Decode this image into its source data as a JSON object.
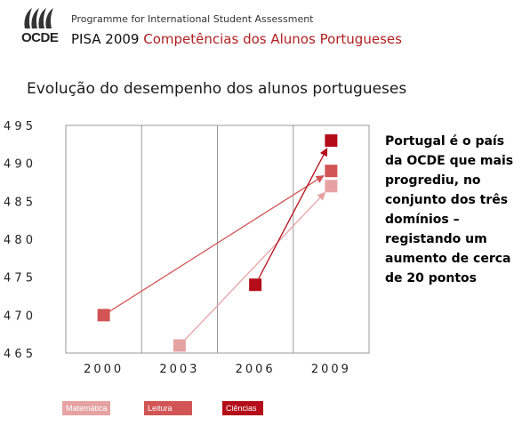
{
  "header": {
    "logo_text": "OCDE",
    "programme": "Programme for International Student Assessment",
    "pisa_label": "PISA 2009",
    "subtitle": "Competências dos Alunos Portugueses"
  },
  "page_title": "Evolução do desempenho dos alunos portugueses",
  "callout": "Portugal é o país da OCDE que mais progrediu, no conjunto dos três domínios – registando um aumento de cerca de 20 pontos",
  "colors": {
    "matematica": "#e6a2a2",
    "leitura": "#d25454",
    "ciencias": "#b40d19",
    "grid": "#9a9a9a"
  },
  "chart_data": {
    "type": "line",
    "title": "",
    "xlabel": "",
    "ylabel": "",
    "categories": [
      "2000",
      "2003",
      "2006",
      "2009"
    ],
    "y_ticks": [
      "4 9 5",
      "4 9 0",
      "4 8 5",
      "4 8 0",
      "4 7 5",
      "4 7 0",
      "4 6 5"
    ],
    "ylim": [
      465,
      495
    ],
    "grid": true,
    "legend_position": "bottom",
    "series": [
      {
        "name": "Matemática",
        "color": "#e6a2a2",
        "points": [
          [
            "2003",
            466
          ],
          [
            "2009",
            487
          ]
        ]
      },
      {
        "name": "Leitura",
        "color": "#d25454",
        "points": [
          [
            "2000",
            470
          ],
          [
            "2009",
            489
          ]
        ]
      },
      {
        "name": "Ciências",
        "color": "#b40d19",
        "points": [
          [
            "2006",
            474
          ],
          [
            "2009",
            493
          ]
        ]
      }
    ]
  }
}
